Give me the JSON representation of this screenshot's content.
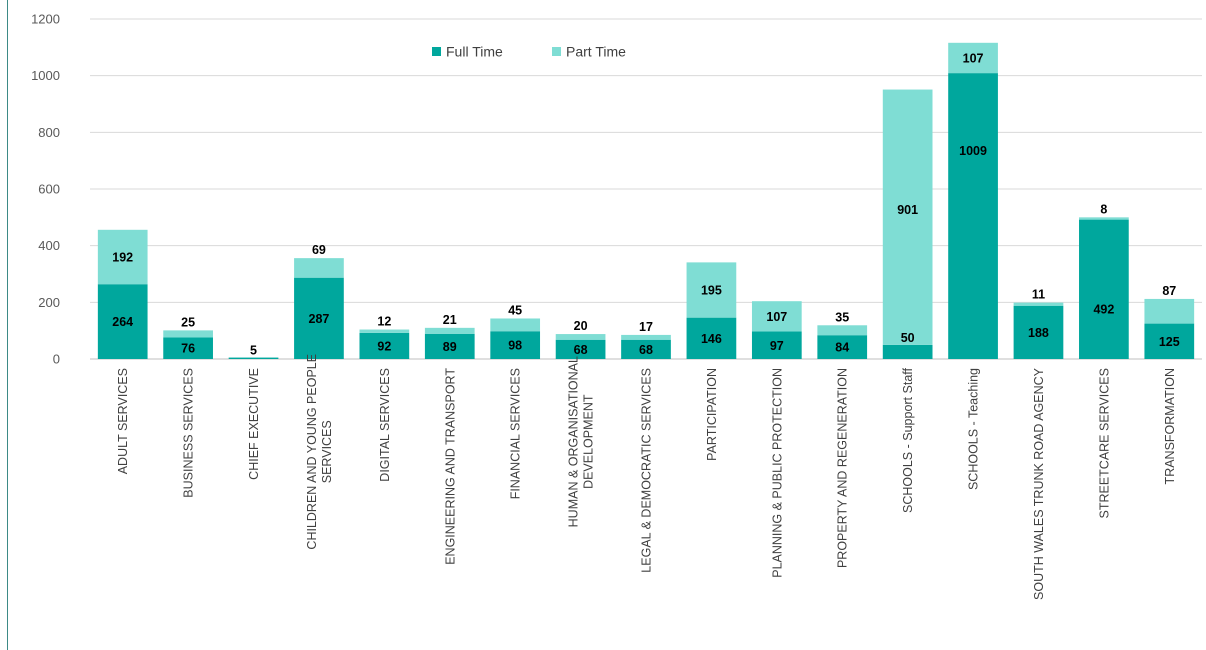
{
  "chart_data": {
    "type": "bar",
    "stacked": true,
    "categories": [
      "ADULT SERVICES",
      "BUSINESS SERVICES",
      "CHIEF EXECUTIVE",
      "CHILDREN AND YOUNG PEOPLE SERVICES",
      "DIGITAL SERVICES",
      "ENGINEERING AND TRANSPORT",
      "FINANCIAL SERVICES",
      "HUMAN & ORGANISATIONAL DEVELOPMENT",
      "LEGAL & DEMOCRATIC SERVICES",
      "PARTICIPATION",
      "PLANNING & PUBLIC PROTECTION",
      "PROPERTY AND REGENERATION",
      "SCHOOLS - Support Staff",
      "SCHOOLS - Teaching",
      "SOUTH WALES TRUNK ROAD AGENCY",
      "STREETCARE SERVICES",
      "TRANSFORMATION"
    ],
    "series": [
      {
        "name": "Full Time",
        "color": "#00a79d",
        "values": [
          264,
          76,
          5,
          287,
          92,
          89,
          98,
          68,
          68,
          146,
          97,
          84,
          50,
          1009,
          188,
          492,
          125
        ]
      },
      {
        "name": "Part Time",
        "color": "#7fddd4",
        "values": [
          192,
          25,
          null,
          69,
          12,
          21,
          45,
          20,
          17,
          195,
          107,
          35,
          901,
          107,
          11,
          8,
          87
        ]
      }
    ],
    "ylim": [
      0,
      1200
    ],
    "yticks": [
      0,
      200,
      400,
      600,
      800,
      1000,
      1200
    ],
    "grid": true,
    "legend_position": "top-center",
    "title": "",
    "xlabel": "",
    "ylabel": ""
  }
}
